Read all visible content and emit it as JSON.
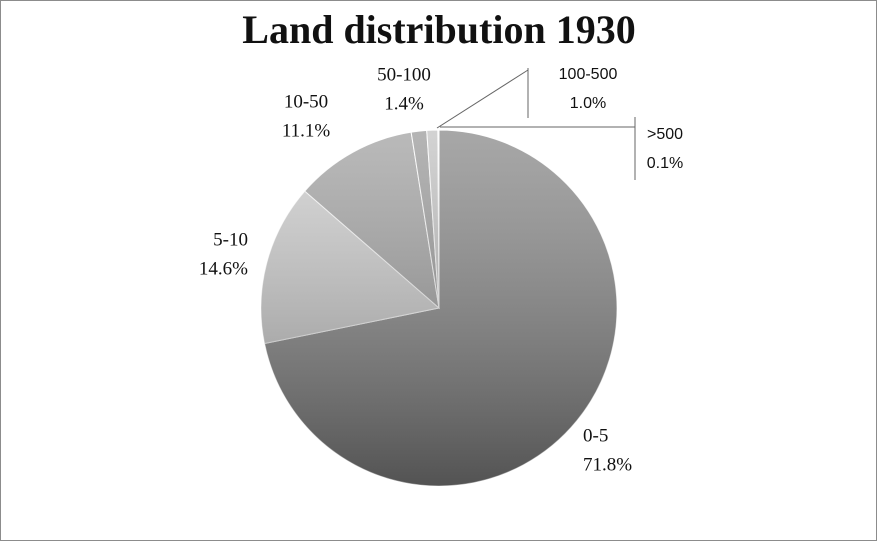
{
  "chart_data": {
    "type": "pie",
    "title": "Land distribution 1930",
    "categories": [
      "0-5",
      "5-10",
      "10-50",
      "50-100",
      "100-500",
      ">500"
    ],
    "values": [
      71.8,
      14.6,
      11.1,
      1.4,
      1.0,
      0.1
    ],
    "value_labels": [
      "71.8%",
      "14.6%",
      "11.1%",
      "1.4%",
      "1.0%",
      "0.1%"
    ],
    "colors": [
      "#8a8a8a",
      "#cfcfcf",
      "#a3a3a3",
      "#9c9c9c",
      "#c4c4c4",
      "#dedede"
    ]
  }
}
